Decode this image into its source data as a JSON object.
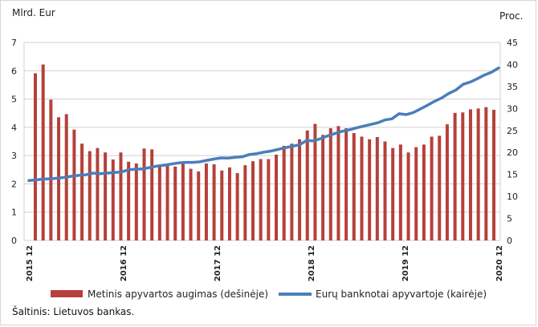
{
  "chart_data": {
    "type": "bar+line",
    "left_axis": {
      "unit": "Mlrd. Eur",
      "ylim": [
        0,
        7
      ],
      "ticks": [
        "0",
        "1",
        "2",
        "3",
        "4",
        "5",
        "6",
        "7"
      ]
    },
    "right_axis": {
      "unit": "Proc.",
      "ylim": [
        0,
        45
      ],
      "ticks": [
        "0",
        "5",
        "10",
        "15",
        "20",
        "25",
        "30",
        "35",
        "40",
        "45"
      ]
    },
    "x_labels": [
      "2015 12",
      "2016 12",
      "2017 12",
      "2018 12",
      "2019 12",
      "2020 12"
    ],
    "gridlines": true,
    "legend_position": "bottom",
    "series": [
      {
        "name": "Metinis apyvartos augimas (dešinėje)",
        "kind": "bar",
        "axis": "right",
        "color": "#b5413a",
        "values": [
          38.0,
          40.0,
          32.0,
          28.0,
          28.7,
          25.2,
          22.0,
          20.3,
          21.0,
          20.0,
          18.4,
          20.0,
          17.9,
          17.5,
          20.9,
          20.7,
          17.0,
          17.3,
          16.8,
          17.5,
          16.3,
          15.7,
          17.5,
          17.3,
          15.9,
          16.6,
          15.3,
          17.1,
          18.0,
          18.5,
          18.5,
          19.5,
          21.5,
          22.0,
          23.0,
          25.0,
          26.5,
          24.0,
          25.5,
          26.0,
          25.5,
          24.4,
          23.6,
          23.0,
          23.5,
          22.5,
          21.0,
          21.8,
          20.0,
          21.2,
          21.8,
          23.6,
          23.8,
          26.4,
          29.0,
          29.1,
          29.8,
          30.0,
          30.3,
          29.7
        ]
      },
      {
        "name": "Eurų banknotai apyvartoje (kairėje)",
        "kind": "line",
        "axis": "left",
        "color": "#4a7ebb",
        "values": [
          2.12,
          2.14,
          2.17,
          2.18,
          2.2,
          2.23,
          2.27,
          2.3,
          2.32,
          2.38,
          2.36,
          2.38,
          2.4,
          2.42,
          2.5,
          2.52,
          2.53,
          2.58,
          2.63,
          2.66,
          2.7,
          2.74,
          2.76,
          2.76,
          2.78,
          2.83,
          2.88,
          2.92,
          2.91,
          2.94,
          2.96,
          3.04,
          3.07,
          3.12,
          3.16,
          3.22,
          3.28,
          3.33,
          3.38,
          3.53,
          3.52,
          3.6,
          3.7,
          3.78,
          3.86,
          3.91,
          3.98,
          4.04,
          4.1,
          4.16,
          4.26,
          4.3,
          4.48,
          4.45,
          4.52,
          4.65,
          4.78,
          4.92,
          5.04,
          5.2,
          5.32,
          5.52,
          5.6,
          5.72,
          5.85,
          5.95,
          6.1
        ]
      }
    ]
  },
  "source_text": "Šaltinis: Lietuvos bankas."
}
